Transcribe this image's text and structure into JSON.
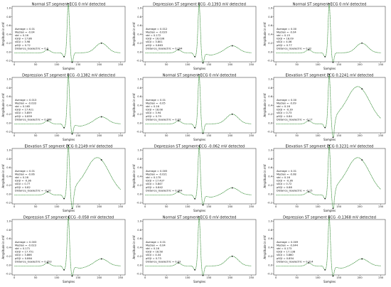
{
  "chart_data": [
    {
      "type": "line",
      "title": "Normal ST segment ECG 0 mV detected",
      "template": "normal",
      "xlabel": "Samples",
      "ylabel": "Amplitude in mV",
      "xlim": [
        0,
        250
      ],
      "ylim": [
        -0.2,
        1.0
      ],
      "xticks": [
        0,
        50,
        100,
        150,
        200,
        250
      ],
      "yticks": [
        -0.2,
        0.0,
        0.2,
        0.4,
        0.6,
        0.8,
        1.0
      ],
      "stats": [
        "Average = 0.01",
        "Median = -0.04",
        "std = 0.16",
        "kSQI = 17.86",
        "sSQI = 3.98",
        "pSQI = 0.72",
        "Distance_Isoelectric = 0.0"
      ]
    },
    {
      "type": "line",
      "title": "Depression ST segment ECG -0.1393 mV detected",
      "template": "depression",
      "xlabel": "Samples",
      "ylabel": "Amplitude in mV",
      "xlim": [
        0,
        250
      ],
      "ylim": [
        -0.2,
        1.0
      ],
      "xticks": [
        0,
        50,
        100,
        150,
        200,
        250
      ],
      "yticks": [
        -0.2,
        0.0,
        0.2,
        0.4,
        0.6,
        0.8,
        1.0
      ],
      "stats": [
        "Average = 0.012",
        "Median = -0.020",
        "std = 0.172",
        "kSQI = 16.036",
        "sSQI = 3.801",
        "pSQI = 0.863",
        "Distance_Isoelectric = 0.164"
      ]
    },
    {
      "type": "line",
      "title": "Normal ST segment ECG 0 mV detected",
      "template": "normal",
      "xlabel": "Samples",
      "ylabel": "Amplitude in mV",
      "xlim": [
        0,
        250
      ],
      "ylim": [
        -0.2,
        1.0
      ],
      "xticks": [
        0,
        50,
        100,
        150,
        200,
        250
      ],
      "yticks": [
        -0.2,
        0.0,
        0.2,
        0.4,
        0.6,
        0.8,
        1.0
      ],
      "stats": [
        "Average = 0.00",
        "Median = -0.04",
        "std = 0.15",
        "kSQI = 18.09",
        "sSQI = 4.06",
        "pSQI = 0.77",
        "Distance_Isoelectric = 0.02"
      ]
    },
    {
      "type": "line",
      "title": "Depression ST segment ECG -0.1382 mV detected",
      "template": "depression",
      "xlabel": "Samples",
      "ylabel": "Amplitude in mV",
      "xlim": [
        0,
        250
      ],
      "ylim": [
        -0.2,
        1.0
      ],
      "xticks": [
        0,
        50,
        100,
        150,
        200,
        250
      ],
      "yticks": [
        -0.2,
        0.0,
        0.2,
        0.4,
        0.6,
        0.8,
        1.0
      ],
      "stats": [
        "Average = 0.013",
        "Median = -0.033",
        "std = 0.165",
        "kSQI = 17.421",
        "sSQI = 3.859",
        "pSQI = 0.859",
        "Distance_Isoelectric = 0.088"
      ]
    },
    {
      "type": "line",
      "title": "Normal ST segment ECG 0 mV detected",
      "template": "normal",
      "xlabel": "Samples",
      "ylabel": "Amplitude in mV",
      "xlim": [
        0,
        250
      ],
      "ylim": [
        -0.2,
        1.0
      ],
      "xticks": [
        0,
        50,
        100,
        150,
        200,
        250
      ],
      "yticks": [
        -0.2,
        0.0,
        0.2,
        0.4,
        0.6,
        0.8,
        1.0
      ],
      "stats": [
        "Average = 0.01",
        "Median = -0.05",
        "std = 0.16",
        "kSQI = 18.08",
        "sSQI = 3.94",
        "pSQI = 0.79",
        "Distance_Isoelectric = 0.03"
      ]
    },
    {
      "type": "line",
      "title": "Elevation ST segment ECG 0.2241 mV detected",
      "template": "elevation",
      "xlabel": "Samples",
      "ylabel": "Amplitude in mV",
      "xlim": [
        0,
        250
      ],
      "ylim": [
        -0.2,
        1.0
      ],
      "xticks": [
        0,
        50,
        100,
        150,
        200,
        250
      ],
      "yticks": [
        -0.2,
        0.0,
        0.2,
        0.4,
        0.6,
        0.8,
        1.0
      ],
      "stats": [
        "Average = 0.00",
        "Median = -0.09",
        "std = 0.16",
        "kSQI = -0.39",
        "sSQI = 0.73",
        "pSQI = 0.84",
        "Distance_Isoelectric = -0.17"
      ]
    },
    {
      "type": "line",
      "title": "Elevation ST segment ECG 0.2149 mV detected",
      "template": "elevation",
      "xlabel": "Samples",
      "ylabel": "Amplitude in mV",
      "xlim": [
        0,
        250
      ],
      "ylim": [
        -0.2,
        1.0
      ],
      "xticks": [
        0,
        50,
        100,
        150,
        200,
        250
      ],
      "yticks": [
        -0.2,
        0.0,
        0.2,
        0.4,
        0.6,
        0.8,
        1.0
      ],
      "stats": [
        "Average = 0.01",
        "Median = -0.06",
        "std = 0.16",
        "kSQI = -0.36",
        "sSQI = 0.77",
        "pSQI = 0.82",
        "Distance_Isoelectric = -0.10"
      ]
    },
    {
      "type": "line",
      "title": "Depression ST segment ECG -0.062 mV detected",
      "template": "depression",
      "xlabel": "Samples",
      "ylabel": "Amplitude in mV",
      "xlim": [
        0,
        250
      ],
      "ylim": [
        -0.2,
        1.0
      ],
      "xticks": [
        0,
        50,
        100,
        150,
        200,
        250
      ],
      "yticks": [
        -0.2,
        0.0,
        0.2,
        0.4,
        0.6,
        0.8,
        1.0
      ],
      "stats": [
        "Average = 0.005",
        "Median = -0.021",
        "std = 0.170",
        "kSQI = 17.437",
        "sSQI = 3.847",
        "pSQI = 0.842",
        "Distance_Isoelectric = 0.064"
      ]
    },
    {
      "type": "line",
      "title": "Elevation ST segment ECG 0.3231 mV detected",
      "template": "elevation",
      "xlabel": "Samples",
      "ylabel": "Amplitude in mV",
      "xlim": [
        0,
        250
      ],
      "ylim": [
        -0.2,
        1.0
      ],
      "xticks": [
        0,
        50,
        100,
        150,
        200,
        250
      ],
      "yticks": [
        -0.2,
        0.0,
        0.2,
        0.4,
        0.6,
        0.8,
        1.0
      ],
      "stats": [
        "Average = 0.01",
        "Median = -0.08",
        "std = 0.16",
        "kSQI = -0.36",
        "sSQI = 0.72",
        "pSQI = 0.88",
        "Distance_Isoelectric = -0.15"
      ]
    },
    {
      "type": "line",
      "title": "Depression ST segment ECG -0.058 mV detected",
      "template": "depression",
      "xlabel": "Samples",
      "ylabel": "Amplitude in mV",
      "xlim": [
        0,
        250
      ],
      "ylim": [
        -0.2,
        1.0
      ],
      "xticks": [
        0,
        50,
        100,
        150,
        200,
        250
      ],
      "yticks": [
        -0.2,
        0.0,
        0.2,
        0.4,
        0.6,
        0.8,
        1.0
      ],
      "stats": [
        "Average = 0.003",
        "Median = -0.023",
        "std = 0.171",
        "kSQI = 17.751",
        "sSQI = 3.866",
        "pSQI = 0.864",
        "Distance_Isoelectric = 0.053"
      ]
    },
    {
      "type": "line",
      "title": "Normal ST segment ECG 0 mV detected",
      "template": "normal",
      "xlabel": "Samples",
      "ylabel": "Amplitude in mV",
      "xlim": [
        0,
        250
      ],
      "ylim": [
        -0.2,
        1.0
      ],
      "xticks": [
        0,
        50,
        100,
        150,
        200,
        250
      ],
      "yticks": [
        -0.2,
        0.0,
        0.2,
        0.4,
        0.6,
        0.8,
        1.0
      ],
      "stats": [
        "Average = 0.01",
        "Median = -0.04",
        "std = 0.16",
        "kSQI = 18.58",
        "sSQI = 4.04",
        "pSQI = 0.73",
        "Distance_Isoelectric = 0.03"
      ]
    },
    {
      "type": "line",
      "title": "Depression ST segment ECG -0.1368 mV detected",
      "template": "depression",
      "xlabel": "Samples",
      "ylabel": "Amplitude in mV",
      "xlim": [
        0,
        250
      ],
      "ylim": [
        -0.2,
        1.0
      ],
      "xticks": [
        0,
        50,
        100,
        150,
        200,
        250
      ],
      "yticks": [
        -0.2,
        0.0,
        0.2,
        0.4,
        0.6,
        0.8,
        1.0
      ],
      "stats": [
        "Average = 0.009",
        "Median = -0.044",
        "std = 0.173",
        "kSQI = 17.138",
        "sSQI = 3.860",
        "pSQI = 0.854",
        "Distance_Isoelectric = 0.014"
      ]
    }
  ],
  "colors": {
    "signal": "#2f8a2f",
    "markers": "#1a1a1a",
    "axes": "#222222"
  }
}
